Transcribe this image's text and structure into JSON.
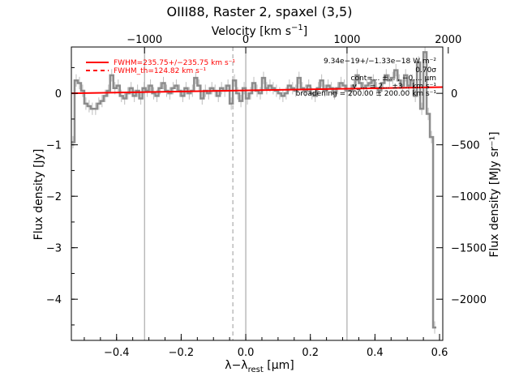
{
  "chart_data": {
    "type": "line",
    "title": "OIII88, Raster 2, spaxel (3,5)",
    "xlabel_html": [
      "λ−λ",
      "rest",
      " [μm]"
    ],
    "ylabel_left": "Flux density [Jy]",
    "ylabel_right": "Flux density [MJy sr⁻¹]",
    "xlabel_top": [
      "Velocity [km s",
      "−1",
      "]"
    ],
    "xlim": [
      -0.54,
      0.61
    ],
    "ylim": [
      -4.8,
      0.9
    ],
    "xticks": [
      -0.4,
      -0.2,
      0.0,
      0.2,
      0.4,
      0.6
    ],
    "xtick_labels": [
      "−0.4",
      "−0.2",
      "0.0",
      "0.2",
      "0.4",
      "0.6"
    ],
    "yticks": [
      -4,
      -3,
      -2,
      -1,
      0
    ],
    "ytick_labels": [
      "−4",
      "−3",
      "−2",
      "−1",
      "0"
    ],
    "top_ticks": [
      -1000,
      0,
      1000,
      2000
    ],
    "top_tick_labels": [
      "−1000",
      "0",
      "1000",
      "2000"
    ],
    "top_tick_x": [
      -0.3135,
      0.0,
      0.3135,
      0.627
    ],
    "right_ticks": [
      0,
      -500,
      -1000,
      -1500,
      -2000
    ],
    "right_tick_labels": [
      "0",
      "−500",
      "−1000",
      "−1500",
      "−2000"
    ],
    "right_tick_y": [
      0.0,
      -1.0,
      -2.0,
      -3.0,
      -4.0
    ],
    "vlines_solid": [
      -0.3135,
      0.0,
      0.3135
    ],
    "vline_dashed": -0.04,
    "spectrum": {
      "name": "data",
      "color": "#8c8c8c",
      "x": [
        -0.535,
        -0.525,
        -0.515,
        -0.505,
        -0.495,
        -0.485,
        -0.475,
        -0.465,
        -0.455,
        -0.445,
        -0.435,
        -0.425,
        -0.415,
        -0.405,
        -0.395,
        -0.385,
        -0.375,
        -0.365,
        -0.355,
        -0.345,
        -0.335,
        -0.325,
        -0.315,
        -0.305,
        -0.295,
        -0.285,
        -0.275,
        -0.265,
        -0.255,
        -0.245,
        -0.235,
        -0.225,
        -0.215,
        -0.205,
        -0.195,
        -0.185,
        -0.175,
        -0.165,
        -0.155,
        -0.145,
        -0.135,
        -0.125,
        -0.115,
        -0.105,
        -0.095,
        -0.085,
        -0.075,
        -0.065,
        -0.055,
        -0.045,
        -0.035,
        -0.025,
        -0.015,
        -0.005,
        0.005,
        0.015,
        0.025,
        0.035,
        0.045,
        0.055,
        0.065,
        0.075,
        0.085,
        0.095,
        0.105,
        0.115,
        0.125,
        0.135,
        0.145,
        0.155,
        0.165,
        0.175,
        0.185,
        0.195,
        0.205,
        0.215,
        0.225,
        0.235,
        0.245,
        0.255,
        0.265,
        0.275,
        0.285,
        0.295,
        0.305,
        0.315,
        0.325,
        0.335,
        0.345,
        0.355,
        0.365,
        0.375,
        0.385,
        0.395,
        0.405,
        0.415,
        0.425,
        0.435,
        0.445,
        0.455,
        0.465,
        0.475,
        0.485,
        0.495,
        0.505,
        0.515,
        0.525,
        0.535,
        0.545,
        0.555,
        0.565,
        0.575,
        0.585
      ],
      "y": [
        -0.95,
        0.25,
        0.2,
        0.05,
        -0.2,
        -0.25,
        -0.3,
        -0.3,
        -0.2,
        -0.15,
        -0.05,
        0.05,
        0.35,
        0.1,
        0.15,
        -0.05,
        -0.1,
        0.0,
        0.1,
        -0.05,
        0.05,
        -0.1,
        0.1,
        0.05,
        0.15,
        0.0,
        -0.05,
        0.1,
        0.2,
        0.05,
        0.0,
        0.1,
        0.15,
        0.05,
        -0.05,
        0.1,
        0.0,
        0.05,
        0.3,
        0.15,
        -0.1,
        0.05,
        0.0,
        0.1,
        0.05,
        -0.05,
        0.1,
        0.05,
        0.15,
        -0.2,
        0.25,
        0.0,
        -0.15,
        0.1,
        -0.1,
        0.0,
        0.2,
        0.05,
        0.0,
        0.3,
        0.1,
        0.15,
        0.1,
        0.05,
        0.0,
        -0.05,
        0.0,
        0.15,
        0.1,
        0.05,
        0.3,
        0.1,
        0.05,
        0.15,
        0.0,
        -0.05,
        0.1,
        0.25,
        0.05,
        0.15,
        0.1,
        0.0,
        0.1,
        0.2,
        0.15,
        0.05,
        0.05,
        0.15,
        0.35,
        0.2,
        0.1,
        0.15,
        0.2,
        0.25,
        0.1,
        0.05,
        0.2,
        0.35,
        0.25,
        0.3,
        0.45,
        0.25,
        0.15,
        0.35,
        0.15,
        0.25,
        -0.05,
        0.6,
        -0.3,
        0.8,
        -0.4,
        -0.85,
        -4.55
      ],
      "err": 0.12
    },
    "fit": {
      "name": "fit",
      "color": "#ff0000",
      "y_start": 0.0,
      "y_end": 0.12
    },
    "legend": [
      {
        "label": "FWHM=235.75+/−235.75 km s⁻¹",
        "style": "solid",
        "color": "#ff0000"
      },
      {
        "label": "FWHM_th=124.82 km s⁻¹",
        "style": "dashed",
        "color": "#ff0000"
      }
    ],
    "info_lines": [
      "9.34e−19+/−1.33e−18 W m⁻²",
      "0.70σ",
      "cont=... ±... , −0.... μm",
      "v_... = 2... ±3... km s⁻¹",
      "broadening = 200.00 ± 200.00 km s⁻¹"
    ]
  }
}
